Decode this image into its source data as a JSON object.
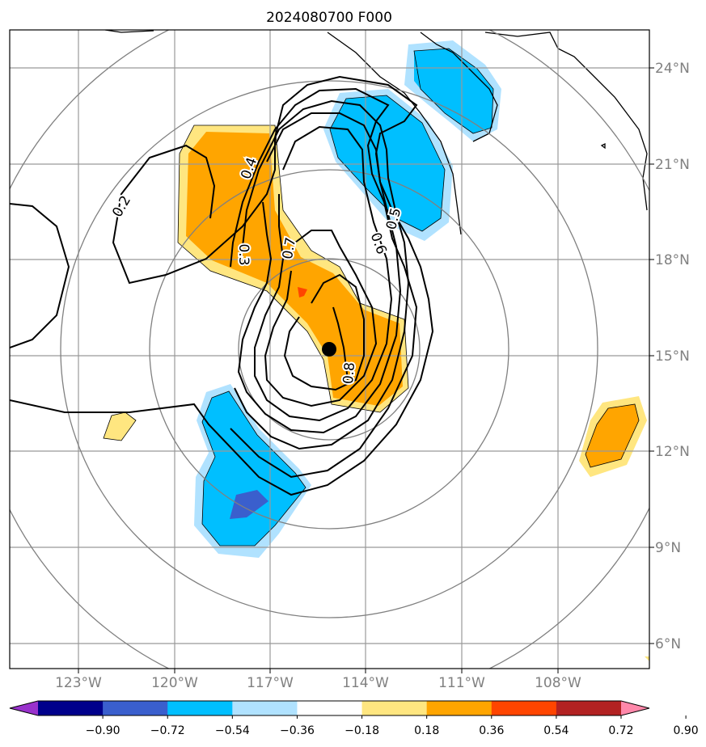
{
  "chart_data": {
    "type": "contour",
    "title": "2024080700 F000",
    "lon_ticks": [
      "123°W",
      "120°W",
      "117°W",
      "114°W",
      "111°W",
      "108°W"
    ],
    "lat_ticks": [
      "24°N",
      "21°N",
      "18°N",
      "15°N",
      "12°N",
      "9°N",
      "6°N"
    ],
    "xlim": [
      -125.2,
      -105.2
    ],
    "ylim": [
      5.2,
      25.2
    ],
    "grid": true,
    "storm_center": {
      "lon": -115.2,
      "lat": 15.2
    },
    "contour_labels": [
      "0.2",
      "0.3",
      "0.4",
      "0.5",
      "0.6",
      "0.7",
      "0.8"
    ],
    "colorbar": {
      "ticks": [
        "−0.90",
        "−0.72",
        "−0.54",
        "−0.36",
        "−0.18",
        "0.18",
        "0.36",
        "0.54",
        "0.72",
        "0.90"
      ],
      "colors": [
        "#9932cc",
        "#00008b",
        "#3a5fcd",
        "#00bfff",
        "#b0e2ff",
        "#ffffff",
        "#ffe680",
        "#ffa500",
        "#ff4500",
        "#b22222",
        "#ff88aa"
      ]
    }
  }
}
